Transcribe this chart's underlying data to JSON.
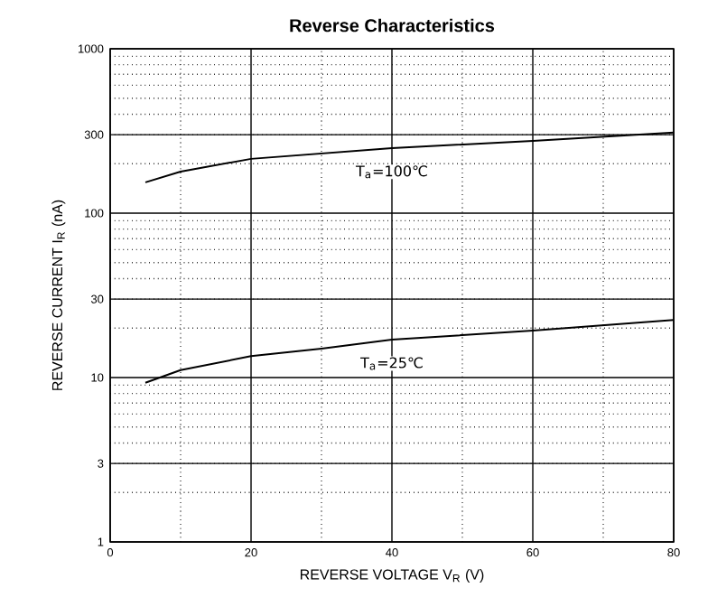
{
  "chart_data": {
    "type": "line",
    "title": "Reverse    Characteristics",
    "xlabel": "REVERSE VOLTAGE   V$_{R}$   (V)",
    "ylabel": "REVERSE CURRENT   I$_{R}$   (nA)",
    "log": "y",
    "grid": true,
    "marker": "none",
    "line_style": "solid",
    "xlim": [
      0,
      80
    ],
    "xticks": [
      0,
      20,
      40,
      60,
      80
    ],
    "ylim": [
      1,
      1000
    ],
    "yticks": [
      1,
      3,
      10,
      30,
      100,
      300,
      1000
    ],
    "series": [
      {
        "color": "#000000",
        "x": [
          5,
          10,
          20,
          40,
          60,
          80
        ],
        "values": [
          154,
          179,
          214,
          249,
          275,
          309
        ]
      },
      {
        "color": "#000000",
        "x": [
          5,
          10,
          20,
          30,
          40,
          60,
          80
        ],
        "values": [
          9.3,
          11.1,
          13.5,
          15,
          17,
          19.3,
          22.4
        ]
      }
    ],
    "annotations": [
      "T$_{a}$=100℃",
      "T$_{a}$=25℃"
    ]
  }
}
